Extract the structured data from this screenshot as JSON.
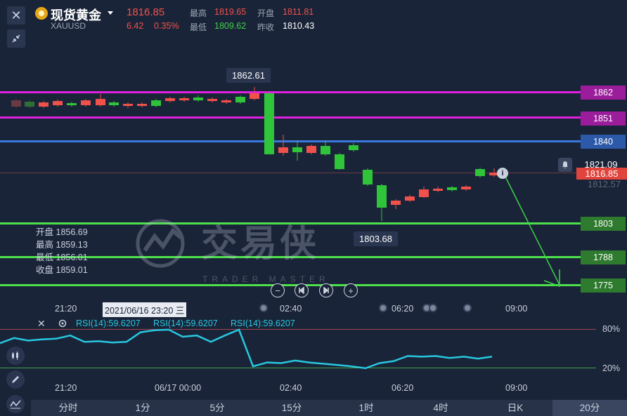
{
  "header": {
    "title": "现货黄金",
    "symbol": "XAUUSD",
    "price": "1816.85",
    "change": "6.42",
    "change_pct": "0.35%",
    "high_label": "最高",
    "high": "1819.65",
    "open_label": "开盘",
    "open": "1811.81",
    "low_label": "最低",
    "low": "1809.62",
    "prev_close_label": "昨收",
    "prev_close": "1810.43"
  },
  "levels": [
    {
      "label": "1862",
      "color": "#e020e0"
    },
    {
      "label": "1851",
      "color": "#e020e0"
    },
    {
      "label": "1840",
      "color": "#3a78e0"
    },
    {
      "label": "1803",
      "color": "#4de04d"
    },
    {
      "label": "1788",
      "color": "#4de04d"
    },
    {
      "label": "1775",
      "color": "#4de04d"
    }
  ],
  "price_tags": {
    "current_hover": "1821.09",
    "last": "1816.85",
    "faded": "1812.57"
  },
  "annotations": {
    "high_tip": "1862.61",
    "low_tip": "1803.68"
  },
  "ohlc": {
    "open_label": "开盘",
    "open": "1856.69",
    "high_label": "最高",
    "high": "1859.13",
    "low_label": "最低",
    "low": "1856.01",
    "close_label": "收盘",
    "close": "1859.01"
  },
  "watermark": {
    "brand": "交易侠",
    "sub": "TRADER MASTER"
  },
  "time_axis_main": {
    "crosshair_label": "2021/06/16 23:20 三",
    "ticks": [
      "21:20",
      "02:40",
      "06:20",
      "09:00"
    ]
  },
  "rsi": {
    "labels": [
      "RSI(14):59.6207",
      "RSI(14):59.6207",
      "RSI(14):59.6207"
    ],
    "level_high": "80%",
    "level_low": "20%",
    "values": [
      58,
      66,
      62,
      64,
      65,
      70,
      60,
      61,
      59,
      60,
      75,
      78,
      79,
      68,
      70,
      60,
      70,
      79,
      22,
      28,
      27,
      31,
      28,
      26,
      24,
      22,
      19,
      27,
      30,
      38,
      37,
      38,
      35,
      37,
      34,
      37
    ]
  },
  "time_axis_rsi": {
    "ticks": [
      "21:20",
      "06/17 00:00",
      "02:40",
      "06:20",
      "09:00"
    ]
  },
  "timeframes": [
    "分时",
    "1分",
    "5分",
    "15分",
    "1时",
    "4时",
    "日K",
    "20分"
  ],
  "active_timeframe": "20分",
  "colors": {
    "up": "#f0514a",
    "down": "#2fc43a",
    "rsi_line": "#27c7e0",
    "background": "#1a2438"
  },
  "icons": [
    "close-icon",
    "shrink-icon",
    "gold-coin-icon",
    "dropdown-icon",
    "bell-icon",
    "info-icon",
    "zoom-out-icon",
    "prev-icon",
    "next-icon",
    "zoom-in-icon",
    "settings-icon",
    "candle-icon",
    "pen-icon",
    "indicator-icon"
  ]
}
